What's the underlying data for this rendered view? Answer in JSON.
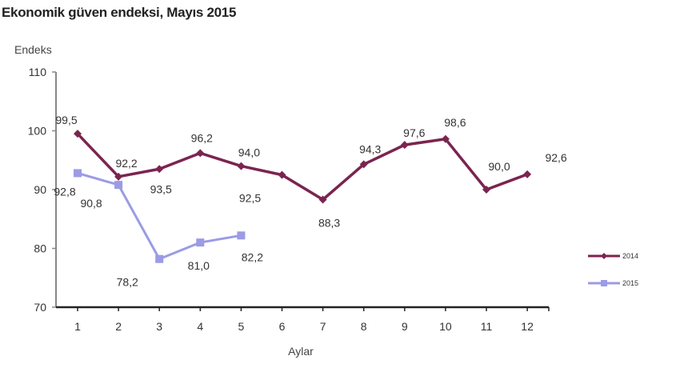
{
  "chart_data": {
    "type": "line",
    "title": "Ekonomik güven endeksi, Mayıs 2015",
    "ylabel": "Endeks",
    "xlabel": "Aylar",
    "ylim": [
      70,
      110
    ],
    "yticks": [
      70,
      80,
      90,
      100,
      110
    ],
    "categories": [
      "1",
      "2",
      "3",
      "4",
      "5",
      "6",
      "7",
      "8",
      "9",
      "10",
      "11",
      "12"
    ],
    "grid": false,
    "legend_position": "right",
    "series": [
      {
        "name": "2014",
        "color": "#7b2450",
        "values": [
          99.5,
          92.2,
          93.5,
          96.2,
          94.0,
          92.5,
          88.3,
          94.3,
          97.6,
          98.6,
          90.0,
          92.6
        ],
        "labels": [
          "99,5",
          "92,2",
          "93,5",
          "96,2",
          "94,0",
          "92,5",
          "88,3",
          "94,3",
          "97,6",
          "98,6",
          "90,0",
          "92,6"
        ]
      },
      {
        "name": "2015",
        "color": "#9b9be6",
        "values": [
          92.8,
          90.8,
          78.2,
          81.0,
          82.2
        ],
        "labels": [
          "92,8",
          "90,8",
          "78,2",
          "81,0",
          "82,2"
        ]
      }
    ]
  }
}
